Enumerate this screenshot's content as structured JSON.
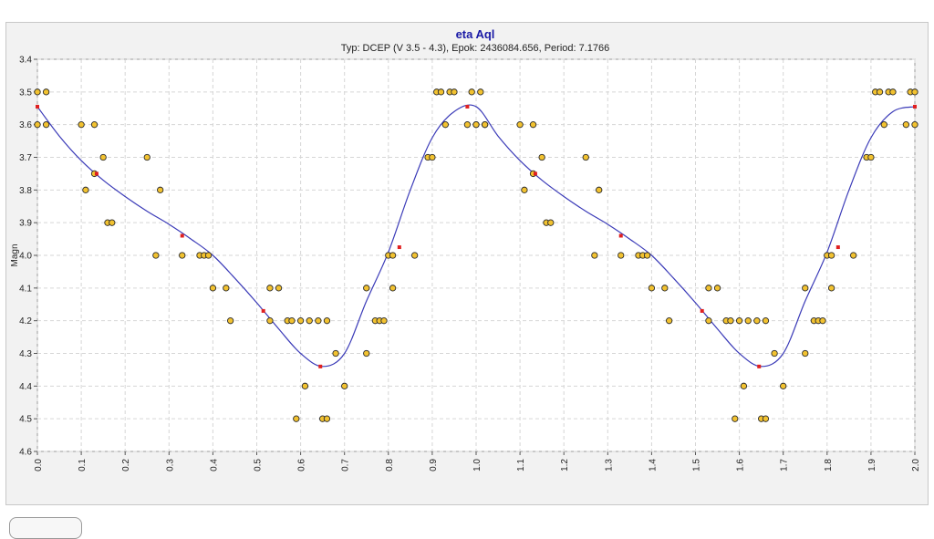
{
  "chart_data": {
    "type": "scatter",
    "title": "eta Aql",
    "subtitle": "Typ: DCEP (V 3.5 - 4.3), Epok: 2436084.656, Period: 7.1766",
    "xlabel": "",
    "ylabel": "Magn",
    "xlim": [
      0.0,
      2.0
    ],
    "ylim": [
      3.4,
      4.6
    ],
    "y_inverted": true,
    "grid": true,
    "x_ticks": [
      "0.0",
      "0.1",
      "0.2",
      "0.3",
      "0.4",
      "0.5",
      "0.6",
      "0.7",
      "0.8",
      "0.9",
      "1.0",
      "1.1",
      "1.2",
      "1.3",
      "1.4",
      "1.5",
      "1.6",
      "1.7",
      "1.8",
      "1.9",
      "2.0"
    ],
    "y_ticks": [
      "3.4",
      "3.5",
      "3.6",
      "3.7",
      "3.8",
      "3.9",
      "4.0",
      "4.1",
      "4.2",
      "4.3",
      "4.4",
      "4.5",
      "4.6"
    ],
    "colors": {
      "background": "#ffffff",
      "panel": "#f2f2f2",
      "grid": "#d6d6d6",
      "title": "#1a1aa6",
      "curve": "#3b3bb8",
      "point_fill": "#f2c230",
      "point_stroke": "#2b2b2b",
      "fit_point": "#e02020"
    },
    "series": [
      {
        "kind": "observations",
        "x": [
          0.0,
          0.0,
          0.02,
          0.02,
          0.1,
          0.11,
          0.13,
          0.13,
          0.15,
          0.16,
          0.17,
          0.25,
          0.27,
          0.28,
          0.33,
          0.37,
          0.38,
          0.39,
          0.4,
          0.43,
          0.44,
          0.53,
          0.53,
          0.55,
          0.57,
          0.58,
          0.59,
          0.6,
          0.61,
          0.62,
          0.64,
          0.65,
          0.66,
          0.66,
          0.68,
          0.7,
          0.75,
          0.75,
          0.77,
          0.78,
          0.79,
          0.8,
          0.81,
          0.81,
          0.86,
          0.89,
          0.9,
          0.91,
          0.92,
          0.93,
          0.94,
          0.95,
          0.98,
          0.99,
          1.0,
          1.0,
          1.01,
          1.02,
          1.02,
          1.1,
          1.11,
          1.13,
          1.13,
          1.15,
          1.16,
          1.17,
          1.25,
          1.27,
          1.28,
          1.33,
          1.37,
          1.38,
          1.39,
          1.4,
          1.43,
          1.44,
          1.53,
          1.53,
          1.55,
          1.57,
          1.58,
          1.59,
          1.6,
          1.61,
          1.62,
          1.64,
          1.65,
          1.66,
          1.66,
          1.68,
          1.7,
          1.75,
          1.75,
          1.77,
          1.78,
          1.79,
          1.8,
          1.81,
          1.81,
          1.86,
          1.89,
          1.9,
          1.91,
          1.92,
          1.93,
          1.94,
          1.95,
          1.98,
          1.99,
          2.0,
          2.0
        ],
        "y": [
          3.6,
          3.5,
          3.5,
          3.6,
          3.6,
          3.8,
          3.6,
          3.75,
          3.7,
          3.9,
          3.9,
          3.7,
          4.0,
          3.8,
          4.0,
          4.0,
          4.0,
          4.0,
          4.1,
          4.1,
          4.2,
          4.1,
          4.2,
          4.1,
          4.2,
          4.2,
          4.5,
          4.2,
          4.4,
          4.2,
          4.2,
          4.5,
          4.5,
          4.2,
          4.3,
          4.4,
          4.1,
          4.3,
          4.2,
          4.2,
          4.2,
          4.0,
          4.1,
          4.0,
          4.0,
          3.7,
          3.7,
          3.5,
          3.5,
          3.6,
          3.5,
          3.5,
          3.6,
          3.5,
          3.6,
          3.6,
          3.5,
          3.6,
          3.6,
          3.6,
          3.8,
          3.6,
          3.75,
          3.7,
          3.9,
          3.9,
          3.7,
          4.0,
          3.8,
          4.0,
          4.0,
          4.0,
          4.0,
          4.1,
          4.1,
          4.2,
          4.1,
          4.2,
          4.1,
          4.2,
          4.2,
          4.5,
          4.2,
          4.4,
          4.2,
          4.2,
          4.5,
          4.5,
          4.2,
          4.3,
          4.4,
          4.1,
          4.3,
          4.2,
          4.2,
          4.2,
          4.0,
          4.1,
          4.0,
          4.0,
          3.7,
          3.7,
          3.5,
          3.5,
          3.6,
          3.5,
          3.5,
          3.6,
          3.5,
          3.6,
          3.5
        ]
      },
      {
        "kind": "fit_curve",
        "x": [
          0.0,
          0.05,
          0.1,
          0.15,
          0.2,
          0.25,
          0.3,
          0.35,
          0.4,
          0.45,
          0.5,
          0.55,
          0.6,
          0.65,
          0.7,
          0.75,
          0.8,
          0.85,
          0.9,
          0.95,
          1.0,
          1.05,
          1.1,
          1.15,
          1.2,
          1.25,
          1.3,
          1.35,
          1.4,
          1.45,
          1.5,
          1.55,
          1.6,
          1.65,
          1.7,
          1.75,
          1.8,
          1.85,
          1.9,
          1.95,
          2.0
        ],
        "y": [
          3.545,
          3.635,
          3.71,
          3.77,
          3.82,
          3.865,
          3.905,
          3.95,
          4.0,
          4.07,
          4.145,
          4.225,
          4.3,
          4.34,
          4.3,
          4.14,
          3.99,
          3.8,
          3.64,
          3.56,
          3.545,
          3.635,
          3.71,
          3.77,
          3.82,
          3.865,
          3.905,
          3.95,
          4.0,
          4.07,
          4.145,
          4.225,
          4.3,
          4.34,
          4.3,
          4.14,
          3.99,
          3.8,
          3.64,
          3.56,
          3.545
        ]
      },
      {
        "kind": "fit_points",
        "x": [
          0.0,
          0.135,
          0.33,
          0.515,
          0.645,
          0.825,
          0.98,
          1.135,
          1.33,
          1.515,
          1.645,
          1.825,
          2.0
        ],
        "y": [
          3.545,
          3.75,
          3.94,
          4.17,
          4.34,
          3.975,
          3.545,
          3.75,
          3.94,
          4.17,
          4.34,
          3.975,
          3.545
        ]
      }
    ]
  }
}
